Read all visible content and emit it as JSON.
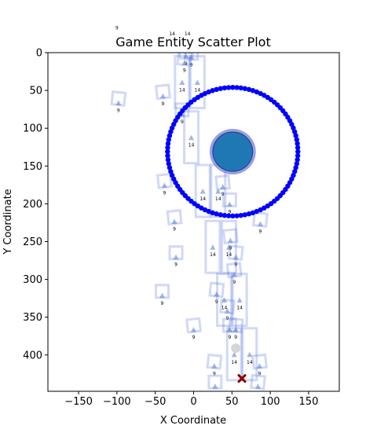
{
  "chart_data": {
    "type": "scatter",
    "title": "Game Entity Scatter Plot",
    "xlabel": "X Coordinate",
    "ylabel": "Y Coordinate",
    "xlim": [
      -190,
      190
    ],
    "ylim": [
      448,
      0
    ],
    "y_inverted": true,
    "grid": false,
    "xticks": [
      -150,
      -100,
      -50,
      0,
      50,
      100,
      150
    ],
    "yticks": [
      0,
      50,
      100,
      150,
      200,
      250,
      300,
      350,
      400
    ],
    "player": {
      "x": 51,
      "y": 131,
      "radius": 26,
      "color": "#1f77b4",
      "halo_color": "#7b7bea"
    },
    "ring": {
      "x": 51,
      "y": 131,
      "radius": 85,
      "color": "#0000ff"
    },
    "target_marker": {
      "x": 63,
      "y": 431,
      "color": "#8b0000",
      "symbol": "X"
    },
    "ghost_marker": {
      "x": 55,
      "y": 391,
      "color": "#cccccc"
    },
    "entity_color": "#5577dd",
    "label_9": "9",
    "label_14": "14",
    "entities": [
      {
        "x": -10,
        "y": 5,
        "label": "9",
        "box": "small"
      },
      {
        "x": -3,
        "y": 7,
        "label": "9",
        "box": "small"
      },
      {
        "x": -12,
        "y": 14,
        "label": "9",
        "box": "small"
      },
      {
        "x": -15,
        "y": 40,
        "label": "14",
        "box": "tall"
      },
      {
        "x": 5,
        "y": 40,
        "label": "14",
        "box": "tall"
      },
      {
        "x": -98,
        "y": 67,
        "label": "9",
        "box": "small"
      },
      {
        "x": -40,
        "y": 58,
        "label": "9",
        "box": "small"
      },
      {
        "x": -15,
        "y": 82,
        "label": "9",
        "box": "small"
      },
      {
        "x": -3,
        "y": 113,
        "label": "14",
        "box": "tall"
      },
      {
        "x": -38,
        "y": 176,
        "label": "9",
        "box": "small"
      },
      {
        "x": 12,
        "y": 184,
        "label": "14",
        "box": "tall"
      },
      {
        "x": 32,
        "y": 184,
        "label": "14",
        "box": "tall"
      },
      {
        "x": 38,
        "y": 178,
        "label": "9",
        "box": "small"
      },
      {
        "x": 47,
        "y": 201,
        "label": "9",
        "box": "small"
      },
      {
        "x": 87,
        "y": 227,
        "label": "9",
        "box": "small"
      },
      {
        "x": -25,
        "y": 224,
        "label": "9",
        "box": "small"
      },
      {
        "x": 25,
        "y": 258,
        "label": "14",
        "box": "tall"
      },
      {
        "x": 46,
        "y": 258,
        "label": "14",
        "box": "tall"
      },
      {
        "x": 48,
        "y": 249,
        "label": "9",
        "box": "small"
      },
      {
        "x": -23,
        "y": 271,
        "label": "9",
        "box": "small"
      },
      {
        "x": 55,
        "y": 271,
        "label": "9",
        "box": "small"
      },
      {
        "x": 53,
        "y": 294,
        "label": "9",
        "box": "small"
      },
      {
        "x": -41,
        "y": 322,
        "label": "9",
        "box": "small"
      },
      {
        "x": 30,
        "y": 320,
        "label": "9",
        "box": "small"
      },
      {
        "x": 40,
        "y": 328,
        "label": "14",
        "box": "tall"
      },
      {
        "x": 60,
        "y": 328,
        "label": "14",
        "box": "tall"
      },
      {
        "x": 44,
        "y": 342,
        "label": "9",
        "box": "small"
      },
      {
        "x": 0,
        "y": 367,
        "label": "9",
        "box": "small"
      },
      {
        "x": 47,
        "y": 367,
        "label": "9",
        "box": "small"
      },
      {
        "x": 55,
        "y": 367,
        "label": "9",
        "box": "small"
      },
      {
        "x": 53,
        "y": 400,
        "label": "14",
        "box": "tall"
      },
      {
        "x": 73,
        "y": 400,
        "label": "14",
        "box": "tall"
      },
      {
        "x": 27,
        "y": 415,
        "label": "9",
        "box": "small"
      },
      {
        "x": 86,
        "y": 415,
        "label": "9",
        "box": "small"
      },
      {
        "x": 28,
        "y": 442,
        "label": "9",
        "box": "small"
      },
      {
        "x": 84,
        "y": 442,
        "label": "9",
        "box": "small"
      }
    ],
    "outside_labels": [
      {
        "x": -100,
        "y": -33,
        "label": "9"
      },
      {
        "x": -28,
        "y": -25,
        "label": "14"
      },
      {
        "x": -8,
        "y": -25,
        "label": "14"
      }
    ]
  }
}
